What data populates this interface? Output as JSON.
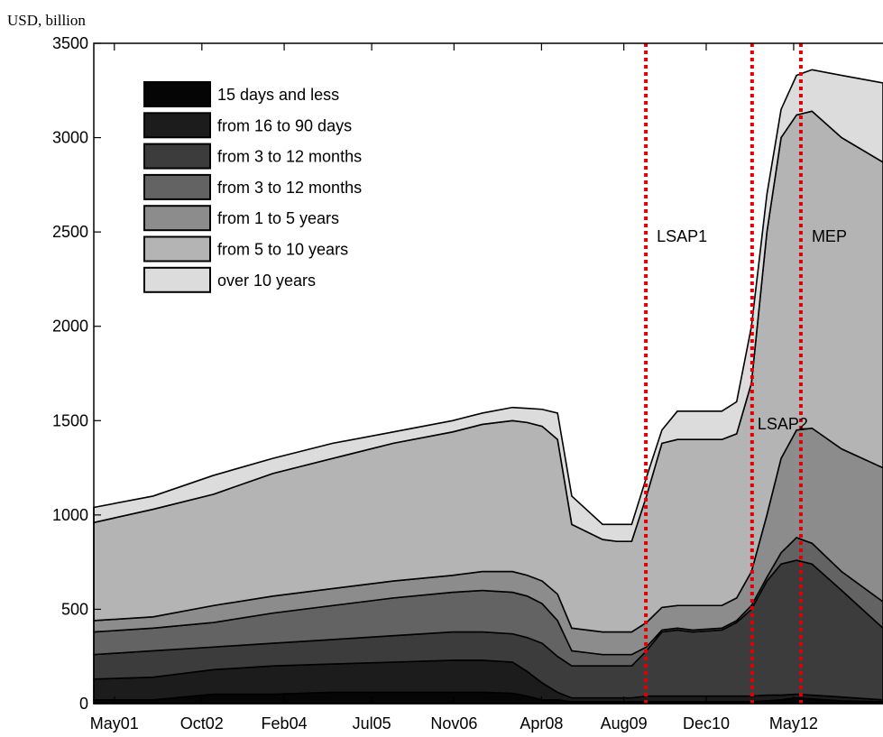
{
  "chart_data": {
    "type": "stacked_area",
    "y_label": "USD, billion",
    "x": [
      2001.0,
      2001.96,
      2002.94,
      2003.9,
      2004.87,
      2005.85,
      2006.81,
      2007.29,
      2007.78,
      2008.02,
      2008.26,
      2008.51,
      2008.74,
      2009.24,
      2009.47,
      2009.71,
      2009.95,
      2010.2,
      2010.45,
      2010.7,
      2011.17,
      2011.41,
      2011.65,
      2011.9,
      2012.13,
      2012.38,
      2012.63,
      2013.11,
      2013.78
    ],
    "series": [
      {
        "name": "15 days and less",
        "color": "#050505",
        "values": [
          20,
          20,
          50,
          50,
          60,
          60,
          60,
          60,
          55,
          40,
          20,
          20,
          10,
          10,
          10,
          10,
          10,
          10,
          10,
          10,
          10,
          10,
          10,
          15,
          20,
          30,
          25,
          15,
          10
        ]
      },
      {
        "name": "from 16 to 90 days",
        "color": "#1c1c1c",
        "values": [
          110,
          120,
          130,
          150,
          150,
          160,
          170,
          170,
          165,
          130,
          90,
          40,
          20,
          20,
          20,
          20,
          30,
          30,
          30,
          30,
          30,
          30,
          30,
          30,
          25,
          20,
          20,
          20,
          10
        ]
      },
      {
        "name": "from 3 to 12 months",
        "color": "#3c3c3c",
        "values": [
          130,
          140,
          120,
          120,
          130,
          140,
          150,
          150,
          150,
          180,
          210,
          190,
          170,
          170,
          170,
          170,
          240,
          340,
          350,
          340,
          350,
          390,
          460,
          605,
          695,
          710,
          695,
          565,
          380
        ]
      },
      {
        "name": "from 3 to 12 months",
        "color": "#636363",
        "values": [
          120,
          120,
          130,
          160,
          180,
          200,
          210,
          220,
          220,
          220,
          210,
          190,
          80,
          60,
          60,
          60,
          20,
          10,
          10,
          10,
          10,
          10,
          20,
          20,
          60,
          120,
          110,
          100,
          140
        ]
      },
      {
        "name": "from 1 to 5 years",
        "color": "#8c8c8c",
        "values": [
          60,
          60,
          90,
          90,
          90,
          90,
          90,
          100,
          110,
          110,
          120,
          140,
          120,
          120,
          120,
          120,
          130,
          120,
          120,
          130,
          120,
          120,
          180,
          330,
          500,
          570,
          610,
          650,
          710
        ]
      },
      {
        "name": "from 5 to 10 years",
        "color": "#b4b4b4",
        "values": [
          520,
          570,
          590,
          650,
          690,
          730,
          760,
          780,
          800,
          810,
          820,
          820,
          550,
          490,
          480,
          480,
          670,
          870,
          880,
          880,
          880,
          870,
          1000,
          1500,
          1700,
          1670,
          1680,
          1650,
          1620
        ]
      },
      {
        "name": "over 10 years",
        "color": "#dcdcdc",
        "values": [
          80,
          70,
          100,
          80,
          80,
          60,
          60,
          60,
          70,
          75,
          90,
          140,
          150,
          80,
          90,
          90,
          100,
          70,
          150,
          150,
          150,
          170,
          300,
          200,
          150,
          210,
          220,
          330,
          420
        ]
      }
    ],
    "xlim": [
      2001.0,
      2013.78
    ],
    "xticks": [
      {
        "value": 2001.333,
        "label": "May01"
      },
      {
        "value": 2002.75,
        "label": "Oct02"
      },
      {
        "value": 2004.083,
        "label": "Feb04"
      },
      {
        "value": 2005.5,
        "label": "Jul05"
      },
      {
        "value": 2006.833,
        "label": "Nov06"
      },
      {
        "value": 2008.25,
        "label": "Apr08"
      },
      {
        "value": 2009.583,
        "label": "Aug09"
      },
      {
        "value": 2010.917,
        "label": "Dec10"
      },
      {
        "value": 2012.333,
        "label": "May12"
      }
    ],
    "ylim": [
      0,
      3500
    ],
    "yticks": [
      0,
      500,
      1000,
      1500,
      2000,
      2500,
      3000,
      3500
    ],
    "legend": "upper left",
    "vlines": [
      {
        "x": 2009.94,
        "label": "LSAP1",
        "color": "#e00000"
      },
      {
        "x": 2011.66,
        "label": "LSAP2",
        "color": "#e00000"
      },
      {
        "x": 2012.45,
        "label": "MEP",
        "color": "#e00000"
      }
    ]
  }
}
